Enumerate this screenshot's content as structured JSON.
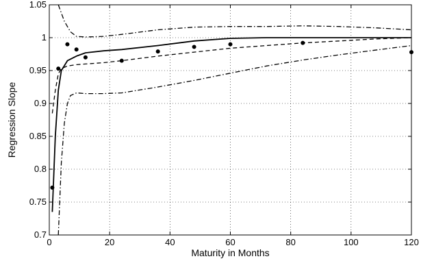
{
  "chart_data": {
    "type": "line",
    "title": "",
    "xlabel": "Maturity in Months",
    "ylabel": "Regression Slope",
    "xlim": [
      0,
      120
    ],
    "ylim": [
      0.7,
      1.05
    ],
    "grid": true,
    "x_ticks": [
      0,
      20,
      40,
      60,
      80,
      100,
      120
    ],
    "x_tick_labels": [
      "0",
      "20",
      "40",
      "60",
      "80",
      "100",
      "120"
    ],
    "y_ticks": [
      0.7,
      0.75,
      0.8,
      0.85,
      0.9,
      0.95,
      1.0,
      1.05
    ],
    "y_tick_labels": [
      "0.7",
      "0.75",
      "0.8",
      "0.85",
      "0.9",
      "0.95",
      "1",
      "1.05"
    ],
    "series": [
      {
        "style": "solid",
        "x": [
          1,
          2,
          3,
          4,
          6,
          9,
          12,
          18,
          24,
          36,
          48,
          60,
          72,
          84,
          96,
          108,
          120
        ],
        "y": [
          0.735,
          0.85,
          0.92,
          0.95,
          0.965,
          0.972,
          0.977,
          0.98,
          0.982,
          0.988,
          0.995,
          0.999,
          1.0,
          1.0,
          1.0,
          1.0,
          1.0
        ]
      },
      {
        "style": "dashed",
        "x": [
          1,
          2,
          3,
          4,
          6,
          9,
          12,
          18,
          24,
          36,
          48,
          60,
          72,
          84,
          96,
          108,
          120
        ],
        "y": [
          0.885,
          0.92,
          0.945,
          0.953,
          0.957,
          0.959,
          0.96,
          0.962,
          0.965,
          0.972,
          0.978,
          0.984,
          0.988,
          0.992,
          0.995,
          0.998,
          1.0
        ]
      },
      {
        "style": "dashdot",
        "x": [
          3,
          5,
          7,
          9,
          12,
          18,
          24,
          36,
          48,
          60,
          72,
          84,
          96,
          108,
          120
        ],
        "y": [
          1.05,
          1.025,
          1.009,
          1.002,
          1.001,
          1.002,
          1.005,
          1.012,
          1.016,
          1.017,
          1.017,
          1.018,
          1.017,
          1.015,
          1.012
        ]
      },
      {
        "style": "dashdot",
        "x": [
          3,
          4,
          5,
          6,
          7,
          9,
          12,
          18,
          24,
          36,
          48,
          60,
          72,
          84,
          96,
          108,
          120
        ],
        "y": [
          0.7,
          0.81,
          0.87,
          0.9,
          0.912,
          0.916,
          0.915,
          0.915,
          0.916,
          0.925,
          0.935,
          0.946,
          0.957,
          0.966,
          0.974,
          0.981,
          0.988
        ]
      },
      {
        "style": "markers",
        "x": [
          1,
          3,
          6,
          9,
          12,
          24,
          36,
          48,
          60,
          84,
          120
        ],
        "y": [
          0.772,
          0.953,
          0.99,
          0.982,
          0.97,
          0.965,
          0.979,
          0.986,
          0.99,
          0.992,
          0.978
        ]
      }
    ]
  }
}
